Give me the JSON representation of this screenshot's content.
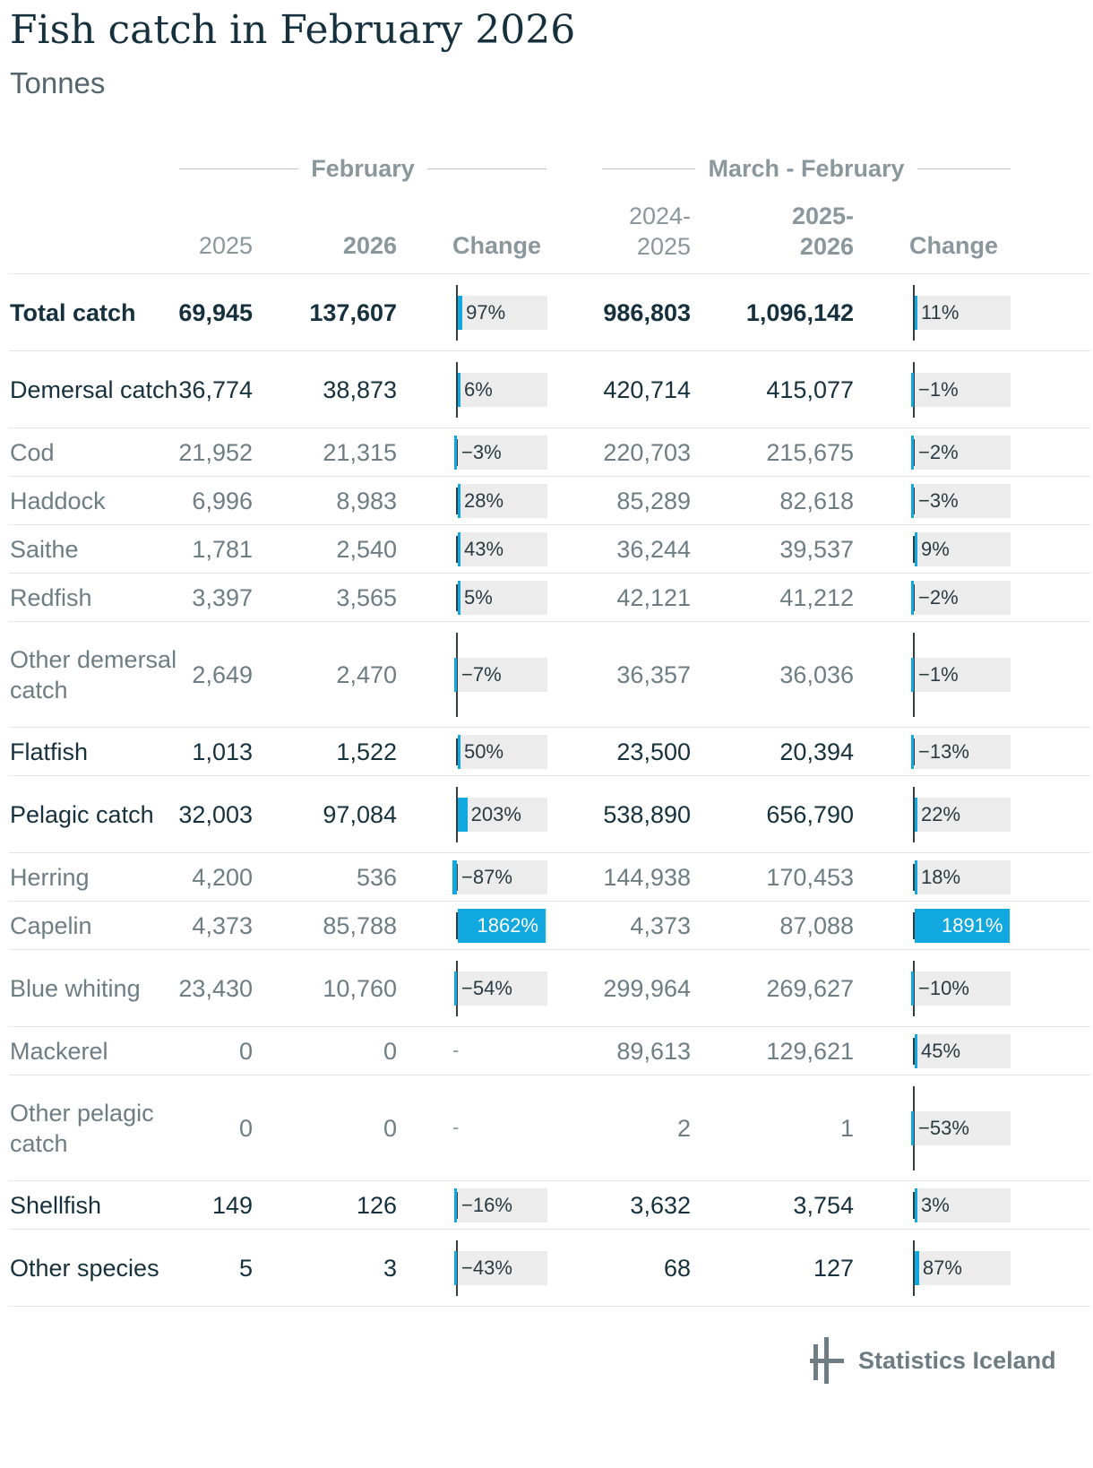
{
  "title": "Fish catch in February 2026",
  "subtitle": "Tonnes",
  "groups": {
    "february": "February",
    "march_february": "March - February"
  },
  "columns": {
    "feb_prev": "2025",
    "feb_curr": "2026",
    "feb_change": "Change",
    "mf_prev": "2024-\n2025",
    "mf_curr": "2025-\n2026",
    "mf_change": "Change"
  },
  "colors": {
    "bar": "#11a8e0",
    "bar_bg": "#ececec",
    "axis": "#333d42"
  },
  "chart_data": {
    "type": "table",
    "title": "Fish catch in February 2026",
    "unit": "Tonnes",
    "bar_scale_max_percent": 1900,
    "rows": [
      {
        "label": "Total catch",
        "style": "total",
        "feb_2025": "69,945",
        "feb_2026": "137,607",
        "feb_change": 97,
        "feb_change_label": "97%",
        "mf_2024_2025": "986,803",
        "mf_2025_2026": "1,096,142",
        "mf_change": 11,
        "mf_change_label": "11%"
      },
      {
        "label": "Demersal catch",
        "style": "main",
        "feb_2025": "36,774",
        "feb_2026": "38,873",
        "feb_change": 6,
        "feb_change_label": "6%",
        "mf_2024_2025": "420,714",
        "mf_2025_2026": "415,077",
        "mf_change": -1,
        "mf_change_label": "−1%"
      },
      {
        "label": "Cod",
        "style": "sub",
        "feb_2025": "21,952",
        "feb_2026": "21,315",
        "feb_change": -3,
        "feb_change_label": "−3%",
        "mf_2024_2025": "220,703",
        "mf_2025_2026": "215,675",
        "mf_change": -2,
        "mf_change_label": "−2%"
      },
      {
        "label": "Haddock",
        "style": "sub",
        "feb_2025": "6,996",
        "feb_2026": "8,983",
        "feb_change": 28,
        "feb_change_label": "28%",
        "mf_2024_2025": "85,289",
        "mf_2025_2026": "82,618",
        "mf_change": -3,
        "mf_change_label": "−3%"
      },
      {
        "label": "Saithe",
        "style": "sub",
        "feb_2025": "1,781",
        "feb_2026": "2,540",
        "feb_change": 43,
        "feb_change_label": "43%",
        "mf_2024_2025": "36,244",
        "mf_2025_2026": "39,537",
        "mf_change": 9,
        "mf_change_label": "9%"
      },
      {
        "label": "Redfish",
        "style": "sub",
        "feb_2025": "3,397",
        "feb_2026": "3,565",
        "feb_change": 5,
        "feb_change_label": "5%",
        "mf_2024_2025": "42,121",
        "mf_2025_2026": "41,212",
        "mf_change": -2,
        "mf_change_label": "−2%"
      },
      {
        "label": "Other demersal catch",
        "style": "sub",
        "feb_2025": "2,649",
        "feb_2026": "2,470",
        "feb_change": -7,
        "feb_change_label": "−7%",
        "mf_2024_2025": "36,357",
        "mf_2025_2026": "36,036",
        "mf_change": -1,
        "mf_change_label": "−1%"
      },
      {
        "label": "Flatfish",
        "style": "main",
        "feb_2025": "1,013",
        "feb_2026": "1,522",
        "feb_change": 50,
        "feb_change_label": "50%",
        "mf_2024_2025": "23,500",
        "mf_2025_2026": "20,394",
        "mf_change": -13,
        "mf_change_label": "−13%"
      },
      {
        "label": "Pelagic catch",
        "style": "main",
        "feb_2025": "32,003",
        "feb_2026": "97,084",
        "feb_change": 203,
        "feb_change_label": "203%",
        "mf_2024_2025": "538,890",
        "mf_2025_2026": "656,790",
        "mf_change": 22,
        "mf_change_label": "22%"
      },
      {
        "label": "Herring",
        "style": "sub",
        "feb_2025": "4,200",
        "feb_2026": "536",
        "feb_change": -87,
        "feb_change_label": "−87%",
        "mf_2024_2025": "144,938",
        "mf_2025_2026": "170,453",
        "mf_change": 18,
        "mf_change_label": "18%"
      },
      {
        "label": "Capelin",
        "style": "sub",
        "feb_2025": "4,373",
        "feb_2026": "85,788",
        "feb_change": 1862,
        "feb_change_label": "1862%",
        "mf_2024_2025": "4,373",
        "mf_2025_2026": "87,088",
        "mf_change": 1891,
        "mf_change_label": "1891%"
      },
      {
        "label": "Blue whiting",
        "style": "sub",
        "feb_2025": "23,430",
        "feb_2026": "10,760",
        "feb_change": -54,
        "feb_change_label": "−54%",
        "mf_2024_2025": "299,964",
        "mf_2025_2026": "269,627",
        "mf_change": -10,
        "mf_change_label": "−10%"
      },
      {
        "label": "Mackerel",
        "style": "sub",
        "feb_2025": "0",
        "feb_2026": "0",
        "feb_change": null,
        "feb_change_label": "-",
        "mf_2024_2025": "89,613",
        "mf_2025_2026": "129,621",
        "mf_change": 45,
        "mf_change_label": "45%"
      },
      {
        "label": "Other pelagic catch",
        "style": "sub",
        "feb_2025": "0",
        "feb_2026": "0",
        "feb_change": null,
        "feb_change_label": "-",
        "mf_2024_2025": "2",
        "mf_2025_2026": "1",
        "mf_change": -53,
        "mf_change_label": "−53%"
      },
      {
        "label": "Shellfish",
        "style": "main",
        "feb_2025": "149",
        "feb_2026": "126",
        "feb_change": -16,
        "feb_change_label": "−16%",
        "mf_2024_2025": "3,632",
        "mf_2025_2026": "3,754",
        "mf_change": 3,
        "mf_change_label": "3%"
      },
      {
        "label": "Other species",
        "style": "main",
        "feb_2025": "5",
        "feb_2026": "3",
        "feb_change": -43,
        "feb_change_label": "−43%",
        "mf_2024_2025": "68",
        "mf_2025_2026": "127",
        "mf_change": 87,
        "mf_change_label": "87%"
      }
    ]
  },
  "footer": {
    "logo_text": "Statistics Iceland"
  }
}
